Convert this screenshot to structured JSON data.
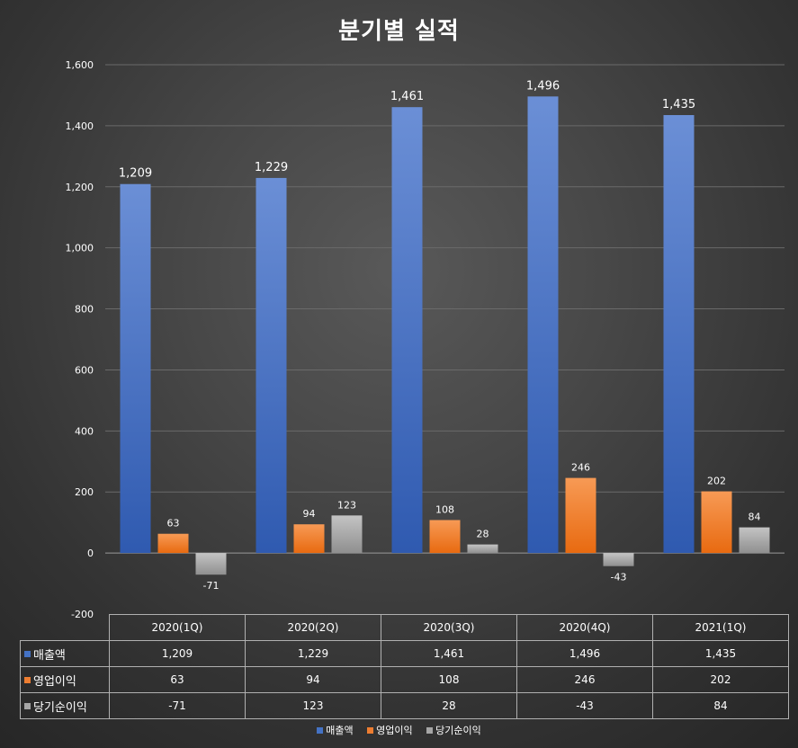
{
  "chart_data": {
    "type": "bar",
    "title": "분기별 실적",
    "categories": [
      "2020(1Q)",
      "2020(2Q)",
      "2020(3Q)",
      "2020(4Q)",
      "2021(1Q)"
    ],
    "series": [
      {
        "name": "매출액",
        "values": [
          1209,
          1229,
          1461,
          1496,
          1435
        ],
        "color": "#4472c4"
      },
      {
        "name": "영업이익",
        "values": [
          63,
          94,
          108,
          246,
          202
        ],
        "color": "#ed7d31"
      },
      {
        "name": "당기순이익",
        "values": [
          -71,
          123,
          28,
          -43,
          84
        ],
        "color": "#a5a5a5"
      }
    ],
    "ylim": [
      -200,
      1600
    ],
    "yticks": [
      -200,
      0,
      200,
      400,
      600,
      800,
      1000,
      1200,
      1400,
      1600
    ],
    "ytick_labels": [
      "-200",
      "0",
      "200",
      "400",
      "600",
      "800",
      "1,000",
      "1,200",
      "1,400",
      "1,600"
    ],
    "data_labels": [
      [
        "1,209",
        "1,229",
        "1,461",
        "1,496",
        "1,435"
      ],
      [
        "63",
        "94",
        "108",
        "246",
        "202"
      ],
      [
        "-71",
        "123",
        "28",
        "-43",
        "84"
      ]
    ],
    "grid": true,
    "legend": "bottom",
    "data_table": true
  },
  "table": {
    "rows": [
      {
        "label": "매출액",
        "values": [
          "1,209",
          "1,229",
          "1,461",
          "1,496",
          "1,435"
        ]
      },
      {
        "label": "영업이익",
        "values": [
          "63",
          "94",
          "108",
          "246",
          "202"
        ]
      },
      {
        "label": "당기순이익",
        "values": [
          "-71",
          "123",
          "28",
          "-43",
          "84"
        ]
      }
    ]
  }
}
